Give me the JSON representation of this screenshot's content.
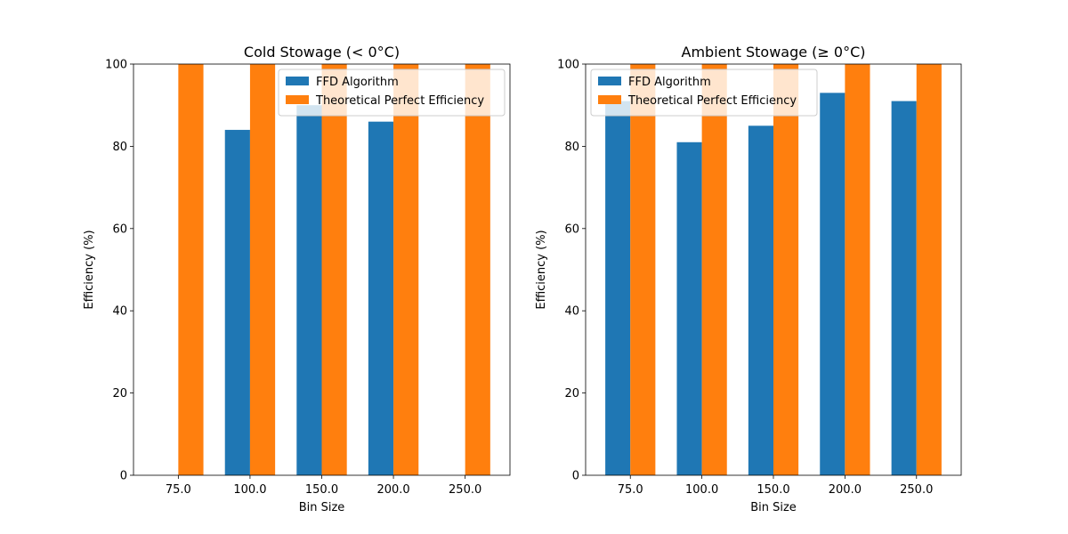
{
  "chart_data": [
    {
      "type": "bar",
      "title": "Cold Stowage (< 0°C)",
      "xlabel": "Bin Size",
      "ylabel": "Efficiency (%)",
      "categories": [
        "75.0",
        "100.0",
        "150.0",
        "200.0",
        "250.0"
      ],
      "ylim": [
        0,
        100
      ],
      "yticks": [
        0,
        20,
        40,
        60,
        80,
        100
      ],
      "legend_position": "top-right",
      "series": [
        {
          "name": "FFD Algorithm",
          "color": "#1f77b4",
          "values": [
            null,
            84,
            90,
            86,
            null
          ]
        },
        {
          "name": "Theoretical Perfect Efficiency",
          "color": "#ff7f0e",
          "values": [
            100,
            100,
            100,
            100,
            100
          ]
        }
      ]
    },
    {
      "type": "bar",
      "title": "Ambient Stowage (≥ 0°C)",
      "xlabel": "Bin Size",
      "ylabel": "Efficiency (%)",
      "categories": [
        "75.0",
        "100.0",
        "150.0",
        "200.0",
        "250.0"
      ],
      "ylim": [
        0,
        100
      ],
      "yticks": [
        0,
        20,
        40,
        60,
        80,
        100
      ],
      "legend_position": "top-left",
      "series": [
        {
          "name": "FFD Algorithm",
          "color": "#1f77b4",
          "values": [
            91,
            81,
            85,
            93,
            91
          ]
        },
        {
          "name": "Theoretical Perfect Efficiency",
          "color": "#ff7f0e",
          "values": [
            100,
            100,
            100,
            100,
            100
          ]
        }
      ]
    }
  ]
}
